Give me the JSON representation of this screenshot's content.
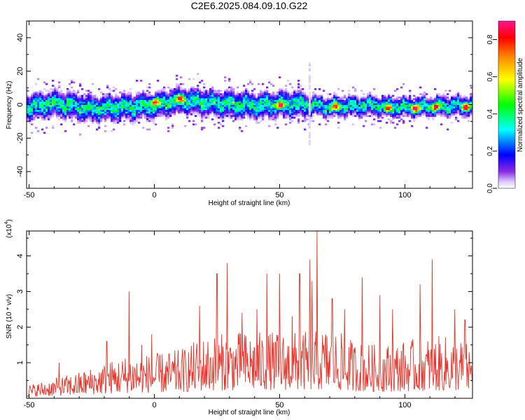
{
  "figure_title": "C2E6.2025.084.09.10.G22",
  "chart_data": [
    {
      "type": "heatmap",
      "xlabel": "Height of straight line (km)",
      "ylabel": "Frequency (Hz)",
      "xlim": [
        -51,
        127
      ],
      "ylim": [
        -50,
        50
      ],
      "xticks": [
        -50,
        0,
        50,
        100
      ],
      "yticks": [
        -40,
        -20,
        0,
        20,
        40
      ],
      "grid": false,
      "colorbar": {
        "label": "Normalized spectral amplitude",
        "range": [
          0.0,
          0.9
        ],
        "ticks": [
          "0.0",
          "0.2",
          "0.4",
          "0.6",
          "0.8"
        ],
        "colormap": [
          "#ffffff",
          "#dcc8ff",
          "#8a2be2",
          "#0000ff",
          "#00ffff",
          "#00ff00",
          "#ffff00",
          "#ff8c00",
          "#ff0000",
          "#ff1493"
        ]
      },
      "ridge": {
        "center_hz": [
          [
            -51,
            -1
          ],
          [
            -40,
            1
          ],
          [
            -25,
            -2
          ],
          [
            0,
            0
          ],
          [
            10,
            3
          ],
          [
            25,
            1
          ],
          [
            40,
            0
          ],
          [
            55,
            1
          ],
          [
            70,
            -1
          ],
          [
            85,
            0
          ],
          [
            100,
            -1
          ],
          [
            127,
            0
          ]
        ],
        "strong_spots": [
          [
            0,
            2
          ],
          [
            10,
            4
          ],
          [
            50,
            0
          ],
          [
            72,
            -1
          ],
          [
            93,
            -2
          ],
          [
            104,
            -2
          ],
          [
            112,
            -1
          ],
          [
            124,
            -1
          ]
        ]
      },
      "features": [
        {
          "x": 62,
          "y_range": [
            -24,
            25
          ],
          "note": "vertical stripe"
        }
      ]
    },
    {
      "type": "line",
      "xlabel": "Height of straight line (km)",
      "ylabel": "SNR (10 * v/v)",
      "y_multiplier_label": "(x10",
      "y_multiplier_exp": "4",
      "xlim": [
        -51,
        127
      ],
      "ylim": [
        0,
        4.7
      ],
      "xticks": [
        -50,
        0,
        50,
        100
      ],
      "yticks": [
        1,
        2,
        3,
        4
      ],
      "line_color": "#e8342a",
      "series": [
        {
          "envelope_x": [
            -51,
            -40,
            -30,
            -20,
            -10,
            0,
            10,
            20,
            30,
            40,
            50,
            60,
            70,
            80,
            90,
            100,
            110,
            120,
            127
          ],
          "envelope_y": [
            0.3,
            0.45,
            0.6,
            0.8,
            1.0,
            1.0,
            1.1,
            1.4,
            1.5,
            1.5,
            1.5,
            1.5,
            1.6,
            1.3,
            1.2,
            1.3,
            1.4,
            1.4,
            1.2
          ],
          "peaks": [
            [
              -38,
              1.0
            ],
            [
              -19,
              1.6
            ],
            [
              -10,
              3.0
            ],
            [
              -5,
              1.5
            ],
            [
              -1,
              1.8
            ],
            [
              18,
              2.6
            ],
            [
              25,
              3.5
            ],
            [
              29,
              3.8
            ],
            [
              35,
              2.4
            ],
            [
              41,
              2.5
            ],
            [
              45,
              3.5
            ],
            [
              50,
              3.5
            ],
            [
              55,
              2.3
            ],
            [
              58,
              3.5
            ],
            [
              62,
              3.9
            ],
            [
              63,
              3.3
            ],
            [
              65,
              4.7
            ],
            [
              71,
              2.8
            ],
            [
              76,
              2.5
            ],
            [
              83,
              3.4
            ],
            [
              90,
              2.9
            ],
            [
              95,
              2.5
            ],
            [
              106,
              3.2
            ],
            [
              111,
              3.9
            ],
            [
              120,
              2.5
            ],
            [
              124,
              2.2
            ]
          ]
        }
      ]
    }
  ]
}
